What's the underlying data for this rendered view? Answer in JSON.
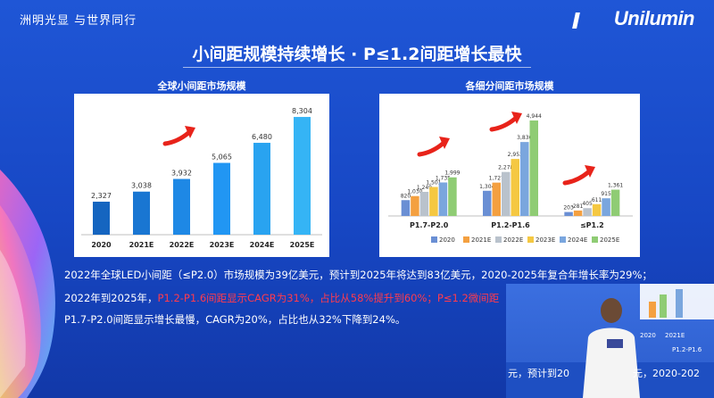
{
  "header": {
    "slogan": "洲明光显 与世界同行",
    "logo": "Unilumin",
    "main_title": "小间距规模持续增长 · P≤1.2间距增长最快"
  },
  "charts_meta": {
    "left_title": "全球小间距市场规模",
    "right_title": "各细分间距市场规模"
  },
  "chart_data": [
    {
      "type": "bar",
      "title": "全球小间距市场规模",
      "categories": [
        "2020",
        "2021E",
        "2022E",
        "2023E",
        "2024E",
        "2025E"
      ],
      "values": [
        2327,
        3038,
        3932,
        5065,
        6480,
        8304
      ],
      "value_labels": [
        "2,327",
        "3,038",
        "3,932",
        "5,065",
        "6,480",
        "8,304"
      ],
      "colors": [
        "#1565c0",
        "#1976d2",
        "#1e88e5",
        "#2196f3",
        "#29a3f0",
        "#35b4f5"
      ],
      "ylim": [
        0,
        9000
      ]
    },
    {
      "type": "bar",
      "title": "各细分间距市场规模",
      "categories": [
        "P1.7-P2.0",
        "P1.2-P1.6",
        "≤P1.2"
      ],
      "series": [
        {
          "name": "2020",
          "color": "#6a8fd4",
          "values": [
            820,
            1304,
            203
          ],
          "labels": [
            "820",
            "1,304",
            "203"
          ]
        },
        {
          "name": "2021E",
          "color": "#f4a040",
          "values": [
            1030,
            1727,
            281
          ],
          "labels": [
            "1,030",
            "1,727",
            "281"
          ]
        },
        {
          "name": "2022E",
          "color": "#b9c2cc",
          "values": [
            1249,
            2278,
            405
          ],
          "labels": [
            "1,249",
            "2,278",
            "405"
          ]
        },
        {
          "name": "2023E",
          "color": "#f5c842",
          "values": [
            1501,
            2953,
            611
          ],
          "labels": [
            "1,501",
            "2,953",
            "611"
          ]
        },
        {
          "name": "2024E",
          "color": "#7aa6de",
          "values": [
            1735,
            3830,
            915
          ],
          "labels": [
            "1,735",
            "3,830",
            "915"
          ]
        },
        {
          "name": "2025E",
          "color": "#8fcc74",
          "values": [
            1999,
            4944,
            1361
          ],
          "labels": [
            "1,999",
            "4,944",
            "1,361"
          ]
        }
      ],
      "ylim": [
        0,
        5500
      ],
      "legend": "bottom"
    }
  ],
  "body": {
    "line1": "2022年全球LED小间距（≤P2.0）市场规模为39亿美元，预计到2025年将达到83亿美元，2020-2025年复合年增长率为29%；",
    "line2_a": "2022年到2025年，",
    "line2_red": "P1.2-P1.6间距显示CAGR为31%，占比从58%提升到60%；P≤1.2微间距",
    "line3": "P1.7-P2.0间距显示增长最慢，CAGR为20%，占比也从32%下降到24%。"
  },
  "video_overlay": {
    "line_a": "元，预计到20",
    "line_b": "元，2020-202",
    "small_labels": [
      "2020",
      "2021E",
      "P1.2-P1.6"
    ]
  }
}
